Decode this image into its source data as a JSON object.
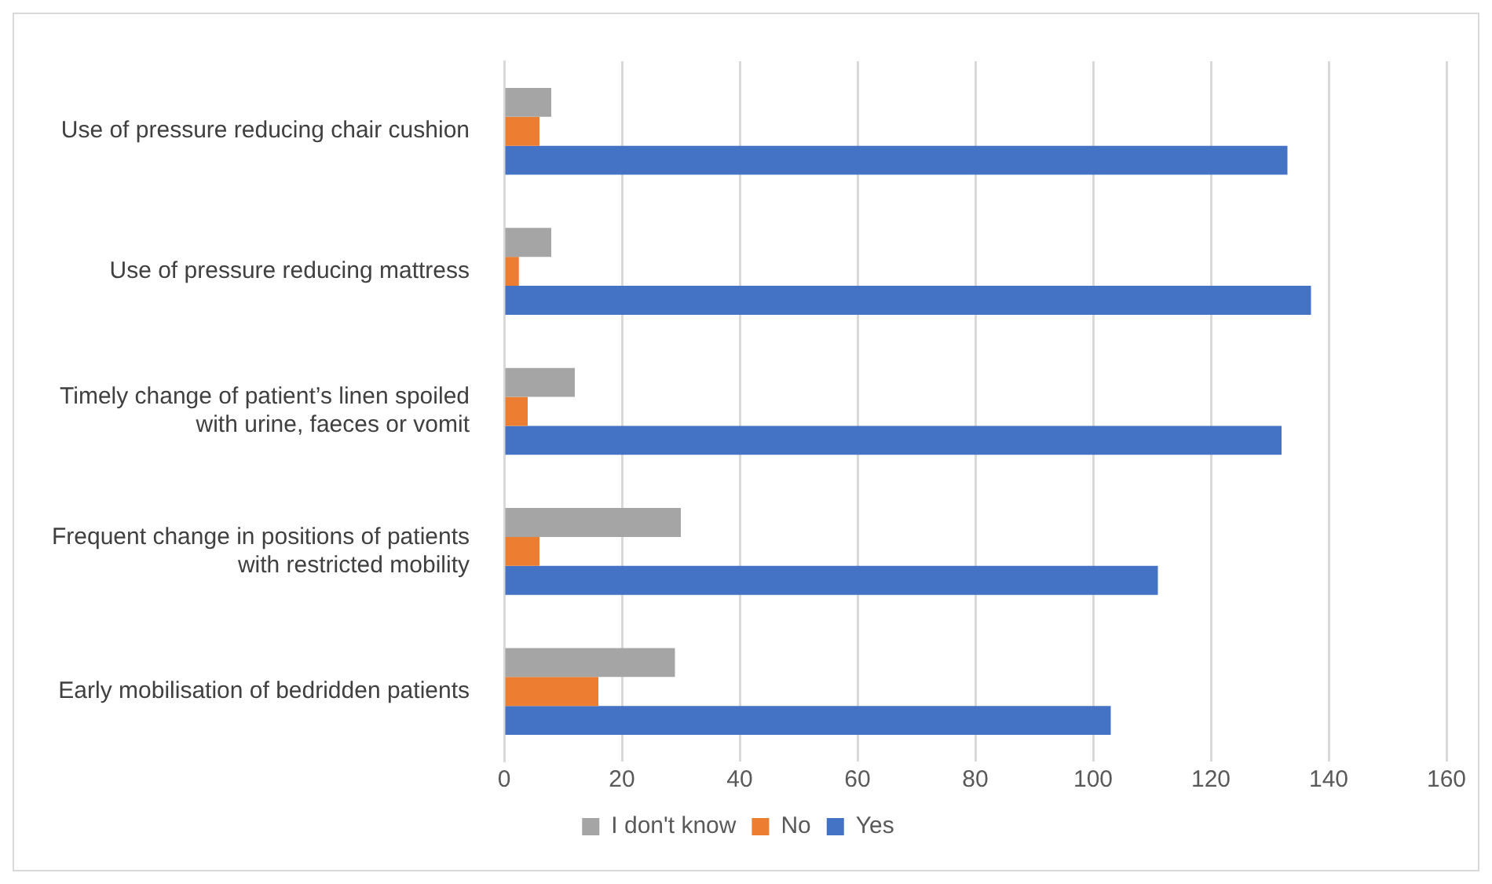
{
  "chart_data": {
    "type": "bar",
    "orientation": "horizontal",
    "categories": [
      "Use of pressure reducing chair cushion",
      "Use of pressure reducing mattress",
      "Timely change of patient’s linen spoiled with urine, faeces or vomit",
      "Frequent change in positions of patients with restricted mobility",
      "Early mobilisation of bedridden patients"
    ],
    "series": [
      {
        "name": "I don't know",
        "color": "#a5a5a5",
        "values": [
          8,
          8,
          12,
          30,
          29
        ]
      },
      {
        "name": "No",
        "color": "#ed7d31",
        "values": [
          6,
          2.5,
          4,
          6,
          16
        ]
      },
      {
        "name": "Yes",
        "color": "#4472c4",
        "values": [
          133,
          137,
          132,
          111,
          103
        ]
      }
    ],
    "xlim": [
      0,
      160
    ],
    "xticks": [
      0,
      20,
      40,
      60,
      80,
      100,
      120,
      140,
      160
    ],
    "grid": "x",
    "legend": "bottom"
  }
}
